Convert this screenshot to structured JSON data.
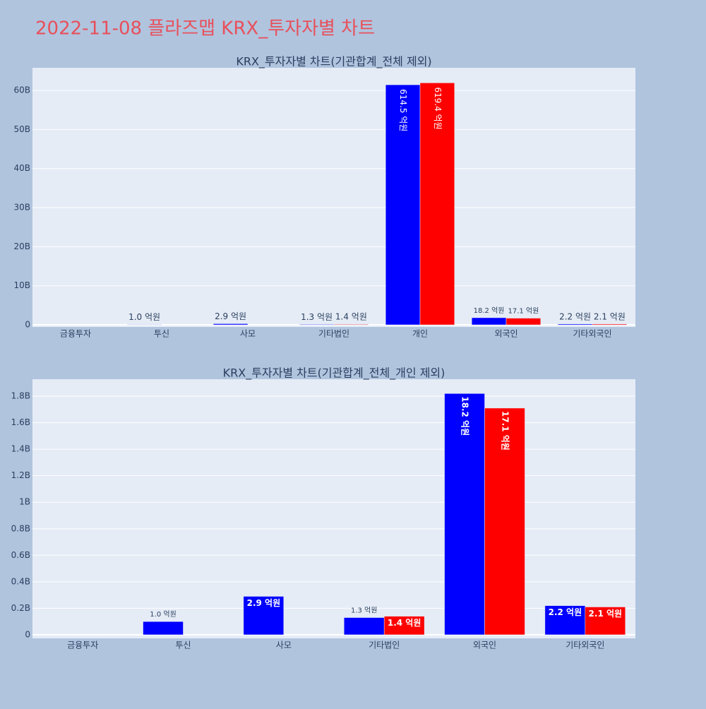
{
  "title": "2022-11-08 플라즈맵 KRX_투자자별 차트",
  "chart_data": [
    {
      "type": "bar",
      "title": "KRX_투자자별 차트(기관합계_전체 제외)",
      "categories": [
        "금융투자",
        "투신",
        "사모",
        "기타법인",
        "개인",
        "외국인",
        "기타외국인"
      ],
      "series": [
        {
          "color": "#0000ff",
          "values": [
            null,
            0.1,
            0.29,
            0.13,
            61.45,
            1.82,
            0.22
          ],
          "value_labels": [
            null,
            "1.0 억원",
            "2.9 억원",
            "1.3 억원",
            "614.5 억원",
            "18.2 억원",
            "2.2 억원"
          ]
        },
        {
          "color": "#ff0000",
          "values": [
            null,
            null,
            null,
            0.14,
            61.94,
            1.71,
            0.21
          ],
          "value_labels": [
            null,
            null,
            null,
            "1.4 억원",
            "619.4 억원",
            "17.1 억원",
            "2.1 억원"
          ]
        }
      ],
      "ylim": [
        -0.54,
        65.8
      ],
      "yticks": [
        0,
        {
          "value": 10,
          "label": "10B"
        },
        {
          "value": 20,
          "label": "20B"
        },
        {
          "value": 30,
          "label": "30B"
        },
        {
          "value": 40,
          "label": "40B"
        },
        {
          "value": 50,
          "label": "50B"
        },
        {
          "value": 60,
          "label": "60B"
        }
      ],
      "grid": true
    },
    {
      "type": "bar",
      "title": "KRX_투자자별 차트(기관합계_전체_개인 제외)",
      "categories": [
        "금융투자",
        "투신",
        "사모",
        "기타법인",
        "외국인",
        "기타외국인"
      ],
      "series": [
        {
          "color": "#0000ff",
          "values": [
            null,
            0.1,
            0.29,
            0.13,
            1.82,
            0.22
          ],
          "value_labels": [
            null,
            "1.0 억원",
            "2.9 억원",
            "1.3 억원",
            "18.2 억원",
            "2.2 억원"
          ]
        },
        {
          "color": "#ff0000",
          "values": [
            null,
            null,
            null,
            0.14,
            1.71,
            0.21
          ],
          "value_labels": [
            null,
            null,
            null,
            "1.4 억원",
            "17.1 억원",
            "2.1 억원"
          ]
        }
      ],
      "ylim": [
        -0.027,
        1.928
      ],
      "yticks": [
        0,
        {
          "value": 0.2,
          "label": "0.2B"
        },
        {
          "value": 0.4,
          "label": "0.4B"
        },
        {
          "value": 0.6,
          "label": "0.6B"
        },
        {
          "value": 0.8,
          "label": "0.8B"
        },
        {
          "value": 1,
          "label": "1B"
        },
        {
          "value": 1.2,
          "label": "1.2B"
        },
        {
          "value": 1.4,
          "label": "1.4B"
        },
        {
          "value": 1.6,
          "label": "1.6B"
        },
        {
          "value": 1.8,
          "label": "1.8B"
        }
      ],
      "grid": true
    }
  ]
}
